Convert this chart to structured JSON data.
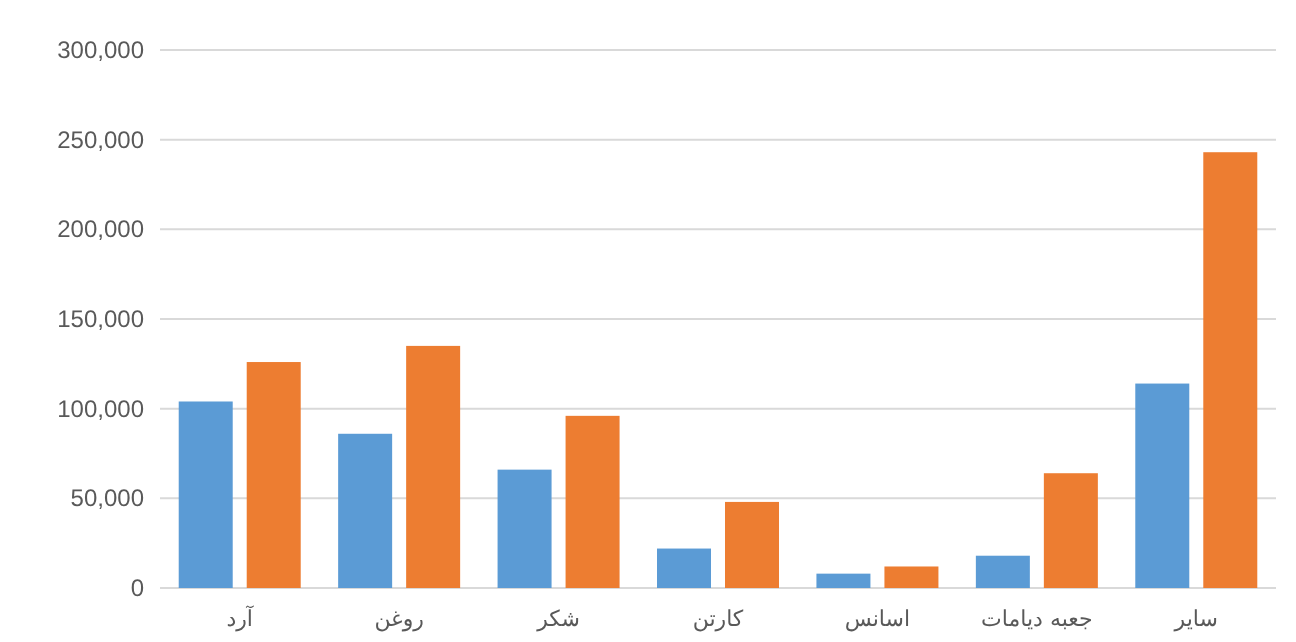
{
  "chart_data": {
    "type": "bar",
    "categories": [
      "آرد",
      "روغن",
      "شکر",
      "کارتن",
      "اسانس",
      "جعبه دیامات",
      "سایر"
    ],
    "series": [
      {
        "color": "#5b9bd5",
        "values": [
          104000,
          86000,
          66000,
          22000,
          8000,
          18000,
          114000
        ]
      },
      {
        "color": "#ed7d31",
        "values": [
          126000,
          135000,
          96000,
          48000,
          12000,
          64000,
          243000
        ]
      }
    ],
    "ylim": [
      0,
      300000
    ],
    "yticks": [
      {
        "value": 0,
        "label": "0"
      },
      {
        "value": 50000,
        "label": "50,000"
      },
      {
        "value": 100000,
        "label": "100,000"
      },
      {
        "value": 150000,
        "label": "150,000"
      },
      {
        "value": 200000,
        "label": "200,000"
      },
      {
        "value": 250000,
        "label": "250,000"
      },
      {
        "value": 300000,
        "label": "300,000"
      }
    ],
    "grid": "y"
  }
}
